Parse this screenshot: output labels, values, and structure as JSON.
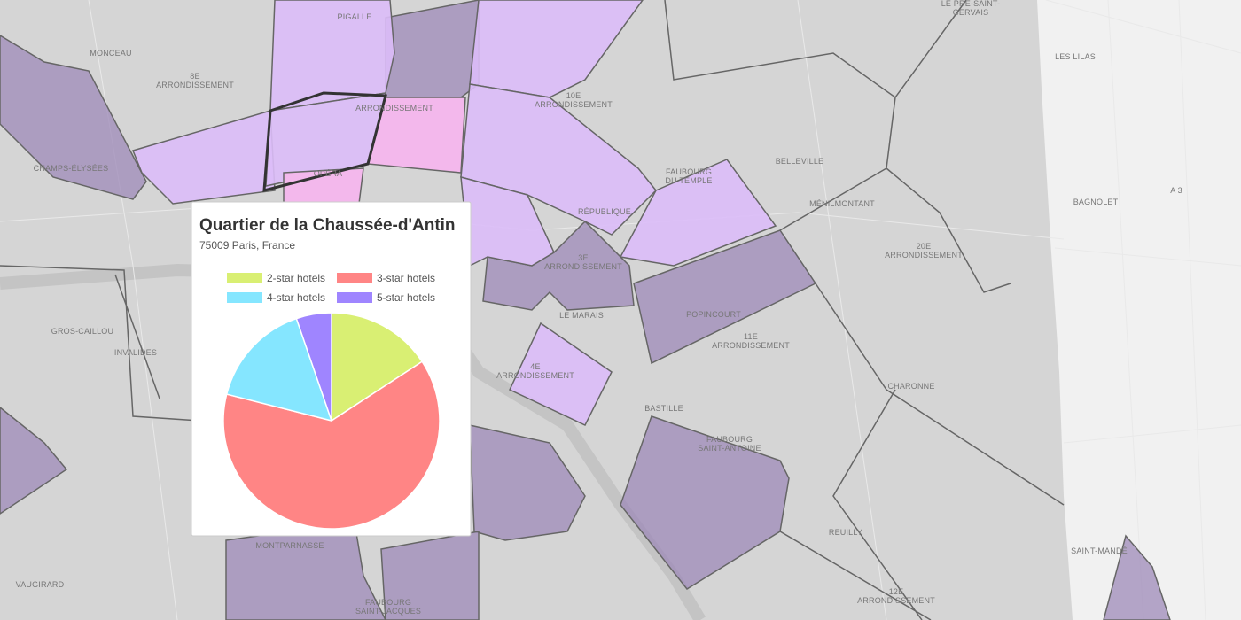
{
  "map": {
    "labels": [
      [
        "MONCEAU"
      ],
      [
        "8E",
        "ARRONDISSEMENT"
      ],
      [
        "CHAMPS-ÉLYSÉES"
      ],
      [
        "PIGALLE"
      ],
      [
        "ARRONDISSEMENT"
      ],
      [
        "OPÉRA"
      ],
      [
        "10E",
        "ARRONDISSEMENT"
      ],
      [
        "FAUBOURG",
        "DU TEMPLE"
      ],
      [
        "BELLEVILLE"
      ],
      [
        "MÉNILMONTANT"
      ],
      [
        "20E",
        "ARRONDISSEMENT"
      ],
      [
        "RÉPUBLIQUE"
      ],
      [
        "3E",
        "ARRONDISSEMENT"
      ],
      [
        "LE MARAIS"
      ],
      [
        "POPINCOURT"
      ],
      [
        "11E",
        "ARRONDISSEMENT"
      ],
      [
        "4E",
        "ARRONDISSEMENT"
      ],
      [
        "CHARONNE"
      ],
      [
        "BASTILLE"
      ],
      [
        "FAUBOURG",
        "SAINT-ANTOINE"
      ],
      [
        "REUILLY"
      ],
      [
        "12E",
        "ARRONDISSEMENT"
      ],
      [
        "GROS-CAILLOU"
      ],
      [
        "INVALIDES"
      ],
      [
        "MONTPARNASSE"
      ],
      [
        "VAUGIRARD"
      ],
      [
        "FAUBOURG",
        "SAINT-JACQUES"
      ],
      [
        "LE PRÉ-SAINT-",
        "GERVAIS"
      ],
      [
        "LES LILAS"
      ],
      [
        "BAGNOLET"
      ],
      [
        "SAINT-MANDÉ"
      ],
      [
        "A 3"
      ]
    ]
  },
  "popup": {
    "title": "Quartier de la Chaussée-d'Antin",
    "subtitle": "75009 Paris, France"
  },
  "chart_data": {
    "type": "pie",
    "categories": [
      "2-star hotels",
      "3-star hotels",
      "4-star hotels",
      "5-star hotels"
    ],
    "values": [
      3,
      12,
      3,
      1
    ],
    "colors": [
      "#d9ef73",
      "#ff8585",
      "#85e6ff",
      "#9f85ff"
    ]
  }
}
